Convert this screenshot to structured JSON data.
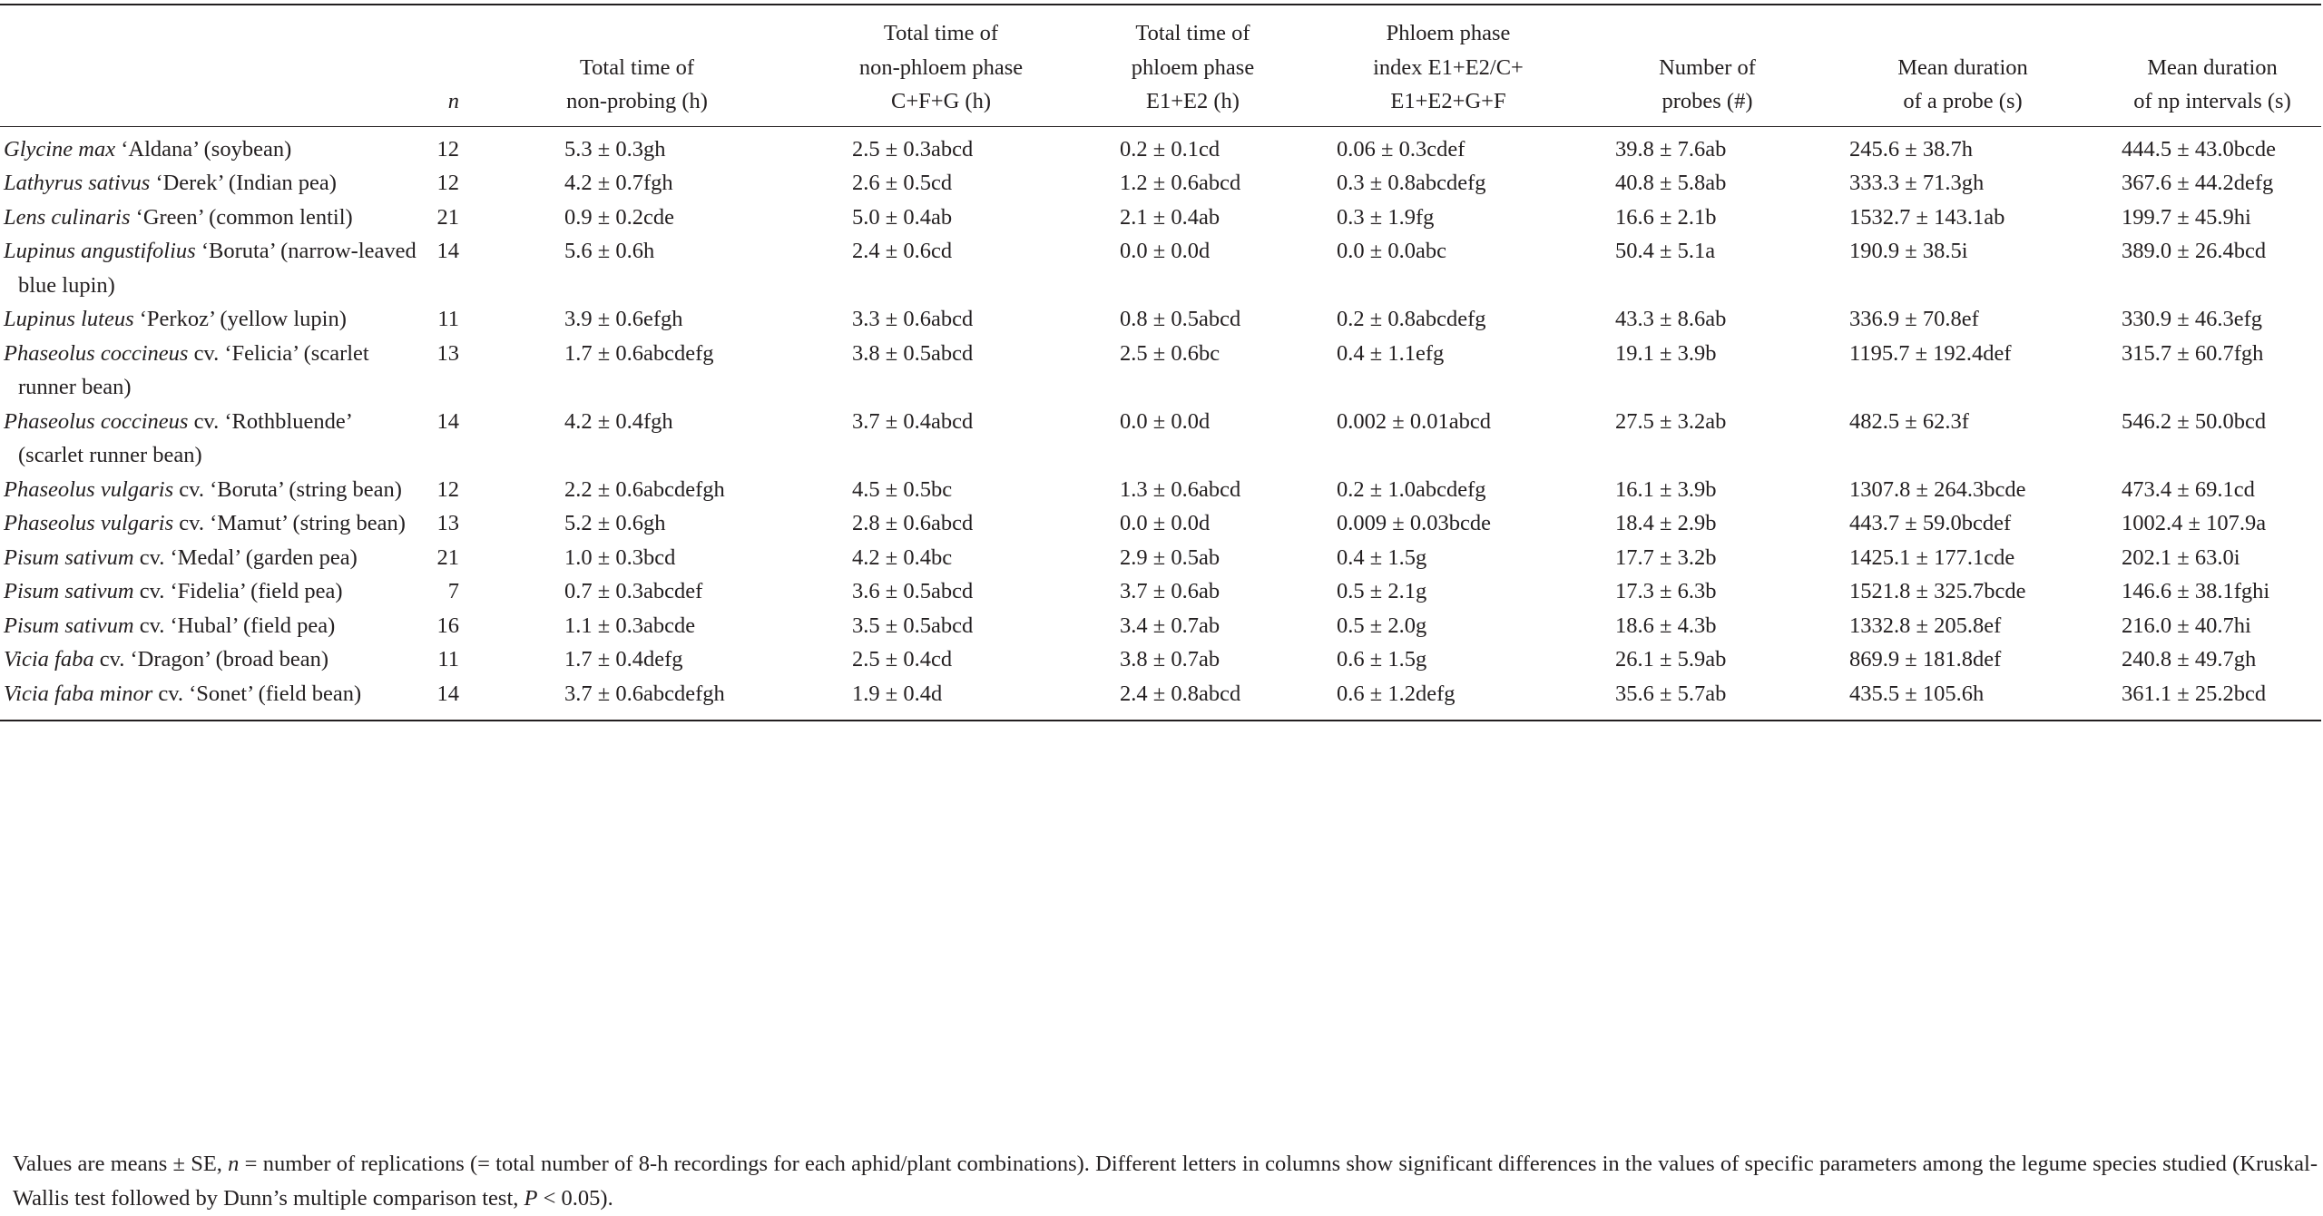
{
  "table": {
    "header": [
      [
        "n"
      ],
      [
        "Total time of",
        "non-probing (h)"
      ],
      [
        "Total time of",
        "non-phloem phase",
        "C+F+G (h)"
      ],
      [
        "Total time of",
        "phloem phase",
        "E1+E2 (h)"
      ],
      [
        "Phloem phase",
        "index E1+E2/C+",
        "E1+E2+G+F"
      ],
      [
        "Number of",
        "probes (#)"
      ],
      [
        "Mean duration",
        "of a probe (s)"
      ],
      [
        "Mean duration",
        "of np intervals (s)"
      ]
    ],
    "rows": [
      {
        "species": "Glycine max",
        "cultivar": "‘Aldana’ (soybean)",
        "n": 12,
        "cells": [
          "5.3 ± 0.3gh",
          "2.5 ± 0.3abcd",
          "0.2 ± 0.1cd",
          "0.06 ± 0.3cdef",
          "39.8 ± 7.6ab",
          "245.6 ± 38.7h",
          "444.5 ± 43.0bcde"
        ]
      },
      {
        "species": "Lathyrus sativus",
        "cultivar": "‘Derek’ (Indian pea)",
        "n": 12,
        "cells": [
          "4.2 ± 0.7fgh",
          "2.6 ± 0.5cd",
          "1.2 ± 0.6abcd",
          "0.3 ± 0.8abcdefg",
          "40.8 ± 5.8ab",
          "333.3 ± 71.3gh",
          "367.6 ± 44.2defg"
        ]
      },
      {
        "species": "Lens culinaris",
        "cultivar": "‘Green’ (common lentil)",
        "n": 21,
        "cells": [
          "0.9 ± 0.2cde",
          "5.0 ± 0.4ab",
          "2.1 ± 0.4ab",
          "0.3 ± 1.9fg",
          "16.6 ± 2.1b",
          "1532.7 ± 143.1ab",
          "199.7 ± 45.9hi"
        ]
      },
      {
        "species": "Lupinus angustifolius",
        "cultivar": "‘Boruta’ (narrow-leaved blue lupin)",
        "n": 14,
        "cells": [
          "5.6 ± 0.6h",
          "2.4 ± 0.6cd",
          "0.0 ± 0.0d",
          "0.0 ± 0.0abc",
          "50.4 ± 5.1a",
          "190.9 ± 38.5i",
          "389.0 ± 26.4bcd"
        ]
      },
      {
        "species": "Lupinus luteus",
        "cultivar": "‘Perkoz’ (yellow lupin)",
        "n": 11,
        "cells": [
          "3.9 ± 0.6efgh",
          "3.3 ± 0.6abcd",
          "0.8 ± 0.5abcd",
          "0.2 ± 0.8abcdefg",
          "43.3 ± 8.6ab",
          "336.9 ± 70.8ef",
          "330.9 ± 46.3efg"
        ]
      },
      {
        "species": "Phaseolus coccineus",
        "cultivar": "cv. ‘Felicia’ (scarlet runner bean)",
        "n": 13,
        "cells": [
          "1.7 ± 0.6abcdefg",
          "3.8 ± 0.5abcd",
          "2.5 ± 0.6bc",
          "0.4 ± 1.1efg",
          "19.1 ± 3.9b",
          "1195.7 ± 192.4def",
          "315.7 ± 60.7fgh"
        ]
      },
      {
        "species": "Phaseolus coccineus",
        "cultivar": "cv. ‘Rothbluende’ (scarlet runner bean)",
        "n": 14,
        "cells": [
          "4.2 ± 0.4fgh",
          "3.7 ± 0.4abcd",
          "0.0 ± 0.0d",
          "0.002 ± 0.01abcd",
          "27.5 ± 3.2ab",
          "482.5 ± 62.3f",
          "546.2 ± 50.0bcd"
        ]
      },
      {
        "species": "Phaseolus vulgaris",
        "cultivar": "cv. ‘Boruta’ (string bean)",
        "n": 12,
        "cells": [
          "2.2 ± 0.6abcdefgh",
          "4.5 ± 0.5bc",
          "1.3 ± 0.6abcd",
          "0.2 ± 1.0abcdefg",
          "16.1 ± 3.9b",
          "1307.8 ± 264.3bcde",
          "473.4 ± 69.1cd"
        ]
      },
      {
        "species": "Phaseolus vulgaris",
        "cultivar": "cv. ‘Mamut’ (string bean)",
        "n": 13,
        "cells": [
          "5.2 ± 0.6gh",
          "2.8 ± 0.6abcd",
          "0.0 ± 0.0d",
          "0.009 ± 0.03bcde",
          "18.4 ± 2.9b",
          "443.7 ± 59.0bcdef",
          "1002.4 ± 107.9a"
        ]
      },
      {
        "species": "Pisum sativum",
        "cultivar": "cv. ‘Medal’ (garden pea)",
        "n": 21,
        "cells": [
          "1.0 ± 0.3bcd",
          "4.2 ± 0.4bc",
          "2.9 ± 0.5ab",
          "0.4 ± 1.5g",
          "17.7 ± 3.2b",
          "1425.1 ± 177.1cde",
          "202.1 ± 63.0i"
        ]
      },
      {
        "species": "Pisum sativum",
        "cultivar": "cv. ‘Fidelia’ (field pea)",
        "n": 7,
        "cells": [
          "0.7 ± 0.3abcdef",
          "3.6 ± 0.5abcd",
          "3.7 ± 0.6ab",
          "0.5 ± 2.1g",
          "17.3 ± 6.3b",
          "1521.8 ± 325.7bcde",
          "146.6 ± 38.1fghi"
        ]
      },
      {
        "species": "Pisum sativum",
        "cultivar": "cv. ‘Hubal’ (field pea)",
        "n": 16,
        "cells": [
          "1.1 ± 0.3abcde",
          "3.5 ± 0.5abcd",
          "3.4 ± 0.7ab",
          "0.5 ± 2.0g",
          "18.6 ± 4.3b",
          "1332.8 ± 205.8ef",
          "216.0 ± 40.7hi"
        ]
      },
      {
        "species": "Vicia faba",
        "cultivar": "cv. ‘Dragon’ (broad bean)",
        "n": 11,
        "cells": [
          "1.7 ± 0.4defg",
          "2.5 ± 0.4cd",
          "3.8 ± 0.7ab",
          "0.6 ± 1.5g",
          "26.1 ± 5.9ab",
          "869.9 ± 181.8def",
          "240.8 ± 49.7gh"
        ]
      },
      {
        "species": "Vicia faba minor",
        "cultivar": "cv. ‘Sonet’ (field bean)",
        "n": 14,
        "cells": [
          "3.7 ± 0.6abcdefgh",
          "1.9 ± 0.4d",
          "2.4 ± 0.8abcd",
          "0.6 ± 1.2defg",
          "35.6 ± 5.7ab",
          "435.5 ± 105.6h",
          "361.1 ± 25.2bcd"
        ]
      }
    ],
    "note": [
      "Values are means ± SE, ",
      "n",
      " = number of replications (= total number of 8-h recordings for each aphid/plant combinations). Different letters in columns show significant differences in the values of specific parameters among the legume species studied (Kruskal-Wallis test followed by Dunn’s multiple comparison test, ",
      "P",
      " < 0.05)."
    ]
  }
}
